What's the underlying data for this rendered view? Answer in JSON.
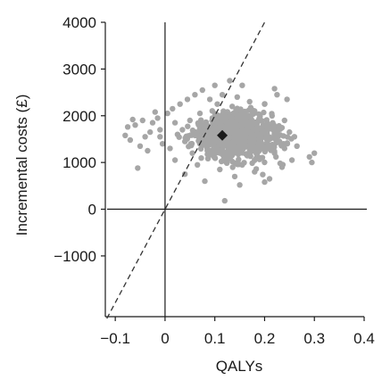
{
  "chart_data": {
    "type": "scatter",
    "xlabel": "QALYs",
    "ylabel": "Incremental costs (£)",
    "xlim": [
      -0.12,
      0.4
    ],
    "ylim": [
      -2300,
      4000
    ],
    "x_ticks": [
      -0.1,
      0,
      0.1,
      0.2,
      0.3,
      0.4
    ],
    "x_tick_labels": [
      "−0.1",
      "0",
      "0.1",
      "0.2",
      "0.3",
      "0.4"
    ],
    "y_ticks": [
      -1000,
      0,
      1000,
      2000,
      3000,
      4000
    ],
    "y_tick_labels": [
      "−1000",
      "0",
      "1000",
      "2000",
      "3000",
      "4000"
    ],
    "grid": false,
    "point_color": "#a6a6a6",
    "mean_point": {
      "x": 0.115,
      "y": 1580,
      "marker": "diamond",
      "color": "#1a1a1a"
    },
    "threshold_line": {
      "style": "dashed",
      "slope": 20000,
      "color": "#333333"
    },
    "series": [
      {
        "points": [
          [
            -0.08,
            1580
          ],
          [
            -0.07,
            1480
          ],
          [
            -0.075,
            1760
          ],
          [
            -0.06,
            1800
          ],
          [
            -0.05,
            1350
          ],
          [
            -0.045,
            1900
          ],
          [
            -0.04,
            1550
          ],
          [
            -0.03,
            1650
          ],
          [
            -0.02,
            2080
          ],
          [
            -0.015,
            1950
          ],
          [
            -0.01,
            1700
          ],
          [
            -0.005,
            1400
          ],
          [
            -0.055,
            880
          ],
          [
            -0.065,
            1920
          ],
          [
            -0.035,
            1250
          ],
          [
            -0.025,
            1850
          ],
          [
            -0.01,
            1550
          ],
          [
            0.005,
            2050
          ],
          [
            0.01,
            1300
          ],
          [
            0.015,
            2150
          ],
          [
            0.02,
            1850
          ],
          [
            0.02,
            1050
          ],
          [
            0.025,
            1600
          ],
          [
            0.03,
            2250
          ],
          [
            0.035,
            1700
          ],
          [
            0.04,
            1450
          ],
          [
            0.04,
            750
          ],
          [
            0.045,
            2350
          ],
          [
            0.05,
            1900
          ],
          [
            0.055,
            1200
          ],
          [
            0.06,
            2450
          ],
          [
            0.06,
            1650
          ],
          [
            0.065,
            950
          ],
          [
            0.07,
            2050
          ],
          [
            0.07,
            1400
          ],
          [
            0.075,
            2550
          ],
          [
            0.08,
            1800
          ],
          [
            0.08,
            600
          ],
          [
            0.085,
            1250
          ],
          [
            0.09,
            2350
          ],
          [
            0.09,
            1550
          ],
          [
            0.095,
            1950
          ],
          [
            0.1,
            2650
          ],
          [
            0.1,
            1100
          ],
          [
            0.105,
            2250
          ],
          [
            0.105,
            1700
          ],
          [
            0.11,
            1350
          ],
          [
            0.11,
            850
          ],
          [
            0.115,
            2450
          ],
          [
            0.12,
            1850
          ],
          [
            0.12,
            180
          ],
          [
            0.125,
            2050
          ],
          [
            0.125,
            1450
          ],
          [
            0.13,
            2750
          ],
          [
            0.13,
            1150
          ],
          [
            0.135,
            2200
          ],
          [
            0.135,
            1600
          ],
          [
            0.14,
            1900
          ],
          [
            0.14,
            700
          ],
          [
            0.145,
            2400
          ],
          [
            0.15,
            1750
          ],
          [
            0.15,
            1300
          ],
          [
            0.155,
            2650
          ],
          [
            0.155,
            950
          ],
          [
            0.16,
            2050
          ],
          [
            0.16,
            1500
          ],
          [
            0.165,
            1800
          ],
          [
            0.17,
            2300
          ],
          [
            0.17,
            1150
          ],
          [
            0.175,
            1650
          ],
          [
            0.18,
            2100
          ],
          [
            0.18,
            800
          ],
          [
            0.185,
            1400
          ],
          [
            0.19,
            1950
          ],
          [
            0.19,
            1100
          ],
          [
            0.195,
            1600
          ],
          [
            0.2,
            2250
          ],
          [
            0.2,
            1300
          ],
          [
            0.205,
            1850
          ],
          [
            0.21,
            650
          ],
          [
            0.21,
            1500
          ],
          [
            0.215,
            2000
          ],
          [
            0.22,
            1200
          ],
          [
            0.22,
            1750
          ],
          [
            0.225,
            2450
          ],
          [
            0.23,
            1450
          ],
          [
            0.235,
            900
          ],
          [
            0.24,
            1900
          ],
          [
            0.24,
            1300
          ],
          [
            0.245,
            2350
          ],
          [
            0.25,
            1650
          ],
          [
            0.255,
            1050
          ],
          [
            0.26,
            1550
          ],
          [
            0.265,
            1350
          ],
          [
            0.29,
            1120
          ],
          [
            0.3,
            1200
          ],
          [
            0.295,
            1000
          ],
          [
            0.2,
            580
          ],
          [
            0.15,
            520
          ],
          [
            0.22,
            2580
          ]
        ]
      }
    ]
  }
}
